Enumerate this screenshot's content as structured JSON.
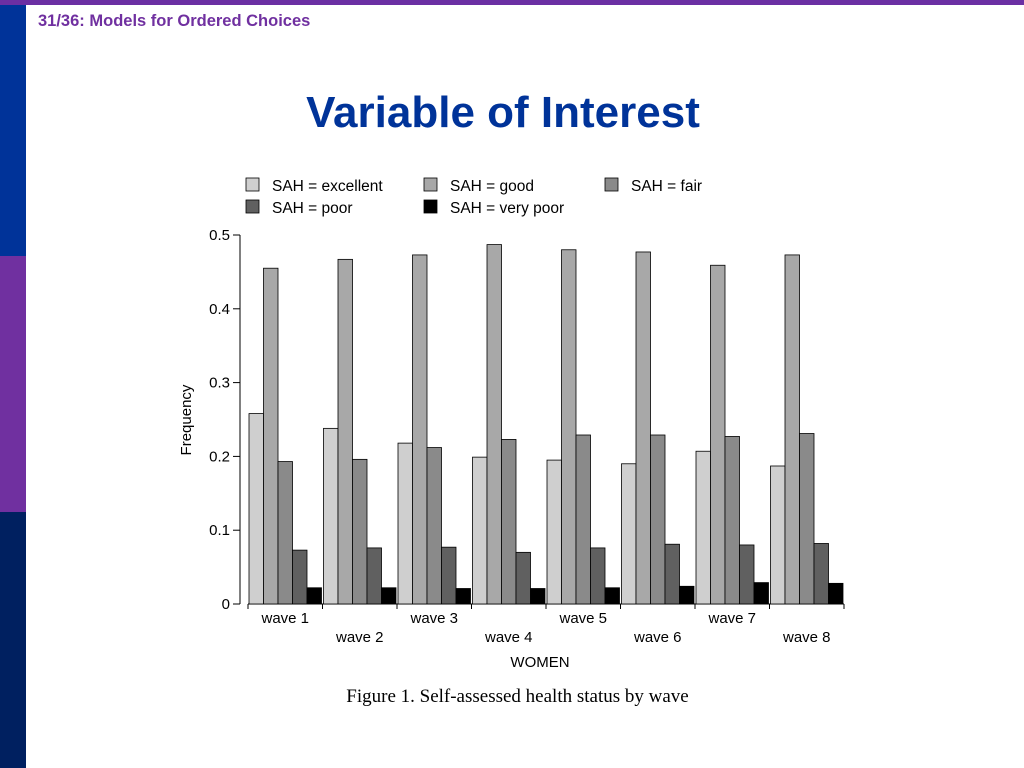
{
  "slide": {
    "counter": "31/36:  Models for Ordered Choices",
    "title": "Variable of Interest",
    "caption": "Figure 1. Self-assessed health status by wave"
  },
  "colors": {
    "brand_purple": "#7030a0",
    "brand_blue": "#003399",
    "side_dark": "#002060",
    "series": [
      "#cfcfcf",
      "#a8a8a8",
      "#8a8a8a",
      "#606060",
      "#000000"
    ]
  },
  "chart_data": {
    "type": "bar",
    "title": "",
    "xlabel": "WOMEN",
    "ylabel": "Frequency",
    "ylim": [
      0,
      0.5
    ],
    "yticks": [
      "0",
      "0.1",
      "0.2",
      "0.3",
      "0.4",
      "0.5"
    ],
    "categories": [
      "wave 1",
      "wave 2",
      "wave 3",
      "wave 4",
      "wave 5",
      "wave 6",
      "wave 7",
      "wave 8"
    ],
    "legend_position": "top",
    "grid": false,
    "series": [
      {
        "name": "SAH = excellent",
        "values": [
          0.258,
          0.238,
          0.218,
          0.199,
          0.195,
          0.19,
          0.207,
          0.187
        ]
      },
      {
        "name": "SAH = good",
        "values": [
          0.455,
          0.467,
          0.473,
          0.487,
          0.48,
          0.477,
          0.459,
          0.473
        ]
      },
      {
        "name": "SAH = fair",
        "values": [
          0.193,
          0.196,
          0.212,
          0.223,
          0.229,
          0.229,
          0.227,
          0.231
        ]
      },
      {
        "name": "SAH = poor",
        "values": [
          0.073,
          0.076,
          0.077,
          0.07,
          0.076,
          0.081,
          0.08,
          0.082
        ]
      },
      {
        "name": "SAH = very poor",
        "values": [
          0.022,
          0.022,
          0.021,
          0.021,
          0.022,
          0.024,
          0.029,
          0.028
        ]
      }
    ]
  }
}
